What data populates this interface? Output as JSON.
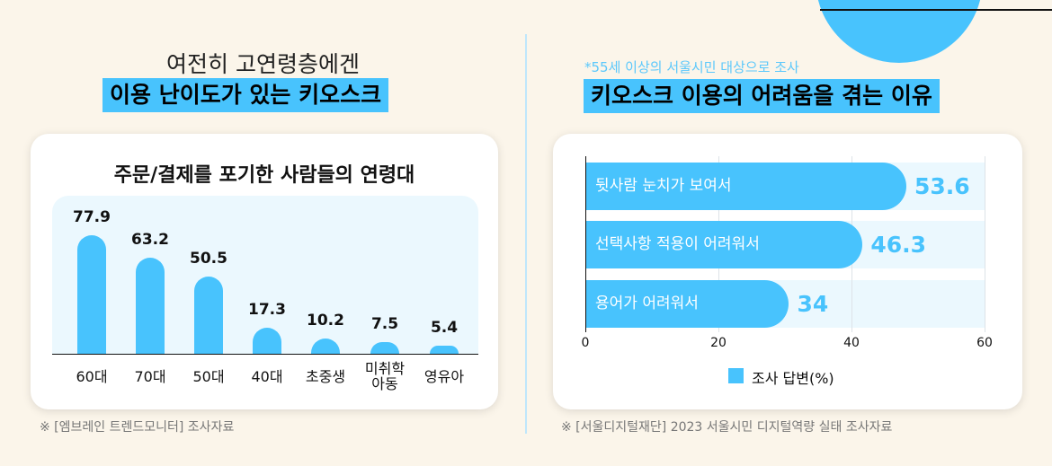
{
  "left": {
    "heading": "여전히 고연령층에겐",
    "highlight": "이용 난이도가 있는 키오스크",
    "source": "※ [엠브레인 트렌드모니터] 조사자료"
  },
  "right": {
    "note": "*55세 이상의 서울시민 대상으로 조사",
    "highlight": "키오스크 이용의 어려움을 겪는 이유",
    "source": "※ [서울디지털재단] 2023 서울시민 디지털역량 실태 조사자료"
  },
  "colors": {
    "accent": "#48c3fd",
    "background": "#fbf5ea"
  },
  "chart_data": [
    {
      "type": "bar",
      "title": "주문/결제를 포기한 사람들의 연령대",
      "categories": [
        "60대",
        "70대",
        "50대",
        "40대",
        "초중생",
        "미취학\n아동",
        "영유아"
      ],
      "values": [
        77.9,
        63.2,
        50.5,
        17.3,
        10.2,
        7.5,
        5.4
      ],
      "value_labels": [
        "77.9",
        "63.2",
        "50.5",
        "17.3",
        "10.2",
        "7.5",
        "5.4"
      ],
      "grid": false
    },
    {
      "type": "bar",
      "orientation": "horizontal",
      "categories": [
        "뒷사람 눈치가 보여서",
        "선택사항 적용이 어려워서",
        "용어가 어려워서"
      ],
      "values": [
        53.6,
        46.3,
        34
      ],
      "value_labels": [
        "53.6",
        "46.3",
        "34"
      ],
      "xlim": [
        0,
        60
      ],
      "xticks": [
        "0",
        "20",
        "40",
        "60"
      ],
      "series": [
        {
          "name": "조사 답변(%)"
        }
      ],
      "legend": "bottom",
      "grid": true
    }
  ]
}
